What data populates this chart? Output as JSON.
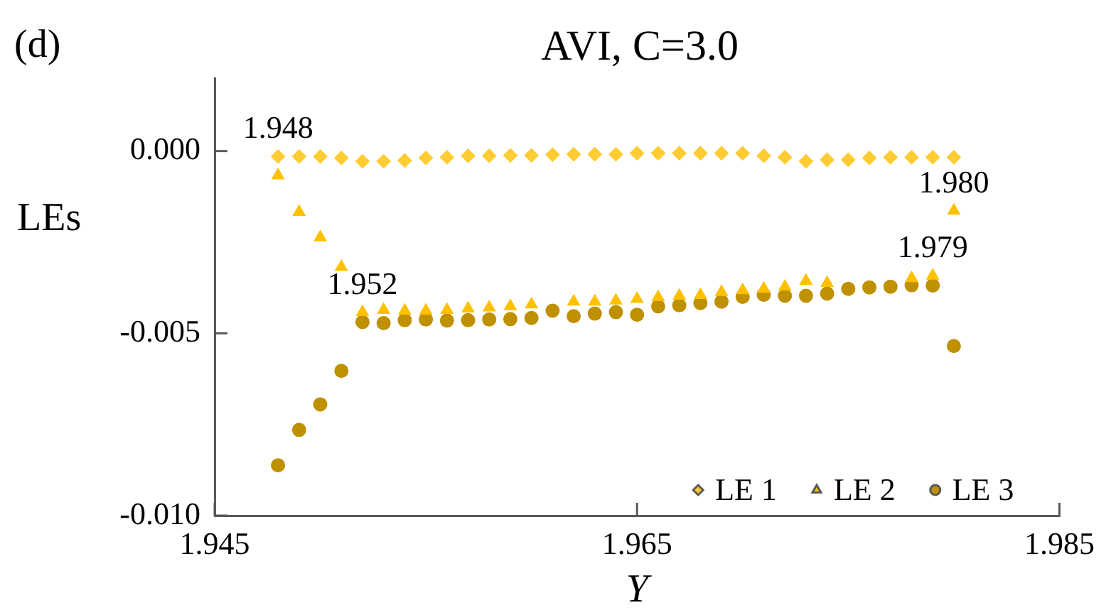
{
  "chart_data": {
    "type": "scatter",
    "title": "AVI, C=3.0",
    "xlabel": "Y",
    "ylabel": "LEs",
    "x": [
      1.948,
      1.949,
      1.95,
      1.951,
      1.952,
      1.953,
      1.954,
      1.955,
      1.956,
      1.957,
      1.958,
      1.959,
      1.96,
      1.961,
      1.962,
      1.963,
      1.964,
      1.965,
      1.966,
      1.967,
      1.968,
      1.969,
      1.97,
      1.971,
      1.972,
      1.973,
      1.974,
      1.975,
      1.976,
      1.977,
      1.978,
      1.979,
      1.98
    ],
    "series": [
      {
        "name": "LE 1",
        "color": "#ffcc33",
        "marker": "diamond",
        "values": [
          -0.00015,
          -0.00015,
          -0.00015,
          -0.00019,
          -0.00028,
          -0.00028,
          -0.00026,
          -0.00019,
          -0.00017,
          -0.00013,
          -0.00013,
          -0.00012,
          -0.00012,
          -0.0001,
          -9e-05,
          -9e-05,
          -9e-05,
          -6e-05,
          -6e-05,
          -6e-05,
          -6e-05,
          -6e-05,
          -6e-05,
          -0.00013,
          -0.00017,
          -0.00028,
          -0.00024,
          -0.00024,
          -0.00019,
          -0.00017,
          -0.00017,
          -0.00017,
          -0.00017
        ]
      },
      {
        "name": "LE 2",
        "color": "#ffc000",
        "marker": "triangle",
        "values": [
          -0.00067,
          -0.00167,
          -0.00237,
          -0.00318,
          -0.00442,
          -0.00436,
          -0.00438,
          -0.00438,
          -0.00436,
          -0.00432,
          -0.00429,
          -0.00426,
          -0.00421,
          null,
          -0.00413,
          -0.00413,
          -0.0041,
          -0.00406,
          -0.00401,
          -0.00397,
          -0.00395,
          -0.00387,
          -0.00382,
          -0.00378,
          -0.00372,
          -0.00356,
          -0.00362,
          null,
          null,
          null,
          -0.00349,
          -0.00342,
          -0.00164
        ]
      },
      {
        "name": "LE 3",
        "color": "#bf9000",
        "marker": "circle",
        "values": [
          -0.00862,
          -0.00765,
          -0.00695,
          -0.00603,
          -0.00469,
          -0.00472,
          -0.00464,
          -0.00462,
          -0.00465,
          -0.00464,
          -0.00462,
          -0.00461,
          -0.00458,
          -0.00438,
          -0.00453,
          -0.00446,
          -0.00442,
          -0.00449,
          -0.00426,
          -0.00423,
          -0.00417,
          -0.00413,
          -0.004,
          -0.00394,
          -0.00397,
          -0.00397,
          -0.00391,
          -0.00378,
          -0.00374,
          -0.00372,
          -0.00368,
          -0.00369,
          -0.00535
        ]
      }
    ],
    "xlim": [
      1.945,
      1.985
    ],
    "xticks": [
      1.945,
      1.965,
      1.985
    ],
    "ylim": [
      -0.01,
      0.002
    ],
    "yticks": [
      {
        "value": -0.01,
        "label": "-0.010"
      },
      {
        "value": -0.005,
        "label": "-0.005"
      },
      {
        "value": 0,
        "label": "0.000"
      }
    ],
    "grid": false,
    "legend": "bottom right",
    "annotations": [
      "(d)",
      {
        "text": "1.948",
        "x": 1.948,
        "y": -0.00015
      },
      {
        "text": "1.952",
        "x": 1.952,
        "y": -0.00442
      },
      {
        "text": "1.979",
        "x": 1.979,
        "y": -0.00342
      },
      {
        "text": "1.980",
        "x": 1.98,
        "y": -0.00164
      }
    ]
  }
}
